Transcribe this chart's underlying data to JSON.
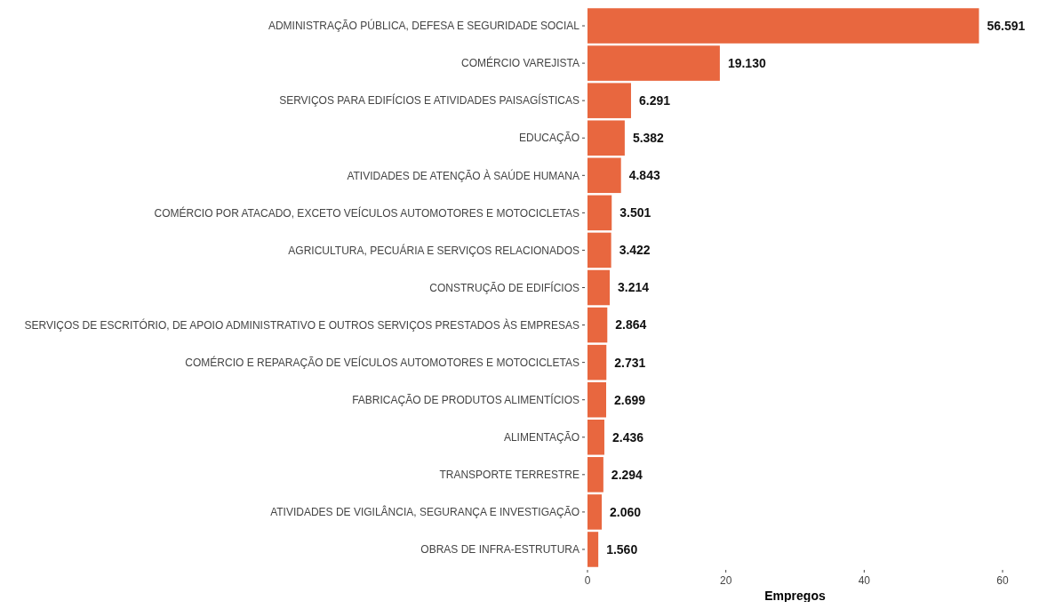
{
  "chart_data": {
    "type": "bar",
    "orientation": "horizontal",
    "xlabel": "Empregos",
    "categories": [
      "ADMINISTRAÇÃO PÚBLICA, DEFESA E SEGURIDADE SOCIAL",
      "COMÉRCIO VAREJISTA",
      "SERVIÇOS PARA EDIFÍCIOS E ATIVIDADES PAISAGÍSTICAS",
      "EDUCAÇÃO",
      "ATIVIDADES DE ATENÇÃO À SAÚDE HUMANA",
      "COMÉRCIO POR ATACADO, EXCETO VEÍCULOS AUTOMOTORES E MOTOCICLETAS",
      "AGRICULTURA, PECUÁRIA E SERVIÇOS RELACIONADOS",
      "CONSTRUÇÃO DE EDIFÍCIOS",
      "SERVIÇOS DE ESCRITÓRIO, DE APOIO ADMINISTRATIVO E OUTROS SERVIÇOS PRESTADOS ÀS EMPRESAS",
      "COMÉRCIO E REPARAÇÃO DE VEÍCULOS AUTOMOTORES E MOTOCICLETAS",
      "FABRICAÇÃO DE PRODUTOS ALIMENTÍCIOS",
      "ALIMENTAÇÃO",
      "TRANSPORTE TERRESTRE",
      "ATIVIDADES DE VIGILÂNCIA, SEGURANÇA E INVESTIGAÇÃO",
      "OBRAS DE INFRA-ESTRUTURA"
    ],
    "values": [
      56.591,
      19.13,
      6.291,
      5.382,
      4.843,
      3.501,
      3.422,
      3.214,
      2.864,
      2.731,
      2.699,
      2.436,
      2.294,
      2.06,
      1.56
    ],
    "value_labels": [
      "56.591",
      "19.130",
      "6.291",
      "5.382",
      "4.843",
      "3.501",
      "3.422",
      "3.214",
      "2.864",
      "2.731",
      "2.699",
      "2.436",
      "2.294",
      "2.060",
      "1.560"
    ],
    "color": "#e8673f",
    "xlim": [
      0,
      60
    ],
    "xticks": [
      0,
      20,
      40,
      60
    ],
    "grid": false
  }
}
